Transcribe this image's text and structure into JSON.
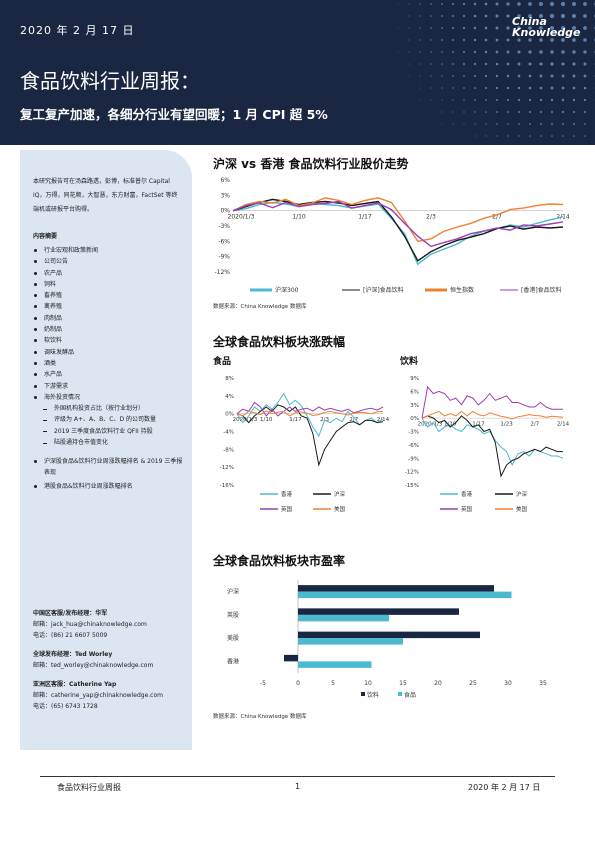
{
  "header": {
    "date": "2020 年 2 月 17 日",
    "logo_line1": "China",
    "logo_line2": "Knowledge",
    "title": "食品饮料行业周报：",
    "subtitle": "复工复产加速，各细分行业有望回暖；1 月 CPI 超 5%"
  },
  "colors": {
    "banner": "#1a2742",
    "sidebar": "#dce6f1",
    "teal": "#4bb9d0",
    "black": "#1a1a1a",
    "orange": "#f08030",
    "purple": "#9b3fb5",
    "navy": "#1a2742"
  },
  "sidebar": {
    "intro": "本研究报告可在汤森路透，彭博，标准普尔 Capital IQ，万得，同花顺，大智慧，东方财富，FactSet 等终端机或研报平台购得。",
    "toc_heading": "内容摘要",
    "toc": [
      {
        "kind": "b",
        "text": "行业宏观和政策新闻"
      },
      {
        "kind": "b",
        "text": "公司公告"
      },
      {
        "kind": "b",
        "text": "农产品"
      },
      {
        "kind": "b",
        "text": "饲料"
      },
      {
        "kind": "b",
        "text": "畜养殖"
      },
      {
        "kind": "b",
        "text": "禽养殖"
      },
      {
        "kind": "b",
        "text": "肉制品"
      },
      {
        "kind": "b",
        "text": "奶制品"
      },
      {
        "kind": "b",
        "text": "软饮料"
      },
      {
        "kind": "b",
        "text": "调味发酵品"
      },
      {
        "kind": "b",
        "text": "酒类"
      },
      {
        "kind": "b",
        "text": "水产品"
      },
      {
        "kind": "b",
        "text": "下游需求"
      },
      {
        "kind": "b",
        "text": "海外投资情况"
      },
      {
        "kind": "s",
        "text": "外国机构投资占比（按行业划分）"
      },
      {
        "kind": "s",
        "text": "评级为 A+、A、B、C、D 的公司数量"
      },
      {
        "kind": "s",
        "text": "2019 三季度食品饮料行业 QFII 持股"
      },
      {
        "kind": "s",
        "text": "陆股通持仓市值变化"
      },
      {
        "kind": "gap",
        "text": ""
      },
      {
        "kind": "bw",
        "text": "沪深股食品&饮料行业周涨跌幅排名 & 2019 三季报表现"
      },
      {
        "kind": "b",
        "text": "港股食品&饮料行业周涨跌幅排名"
      }
    ],
    "contacts": [
      {
        "heading": "中国区客服/发布经理：华军",
        "lines": [
          "邮箱：jack_hua@chinaknowledge.com",
          "电话：(86) 21 6607 5009"
        ]
      },
      {
        "heading": "全球发布经理：Ted Worley",
        "lines": [
          "邮箱：ted_worley@chinaknowledge.com"
        ]
      },
      {
        "heading": "亚洲区客服：Catherine Yap",
        "lines": [
          "邮箱：catherine_yap@chinaknowledge.com",
          "电话：(65) 6743 1728"
        ]
      }
    ]
  },
  "section1": {
    "title": "沪深 vs 香港 食品饮料行业股价走势",
    "source": "数据来源：China Knowledge 数据库"
  },
  "section2": {
    "title": "全球食品饮料板块涨跌幅",
    "left_label": "食品",
    "right_label": "饮料"
  },
  "section3": {
    "title": "全球食品饮料板块市盈率",
    "source": "数据来源：China Knowledge 数据库"
  },
  "footer": {
    "left": "食品饮料行业周报",
    "page": "1",
    "right": "2020 年 2 月 17 日"
  },
  "chart_data": [
    {
      "type": "line",
      "title": "沪深 vs 香港 食品饮料行业股价走势",
      "x_ticks": [
        "2020/1/3",
        "1/10",
        "1/17",
        "2/3",
        "2/7",
        "2/14"
      ],
      "ylim": [
        -12,
        6
      ],
      "y_ticks": [
        "6%",
        "3%",
        "0%",
        "-3%",
        "-6%",
        "-9%",
        "-12%"
      ],
      "series": [
        {
          "name": "沪深300",
          "color": "#4bb9d0",
          "values": [
            0,
            0.4,
            1.2,
            1.6,
            1.3,
            0.8,
            1.5,
            1.2,
            1.0,
            0.5,
            0.9,
            1.3,
            -1.5,
            -4.5,
            -10.5,
            -8.5,
            -7.5,
            -6.5,
            -5.0,
            -4.0,
            -3.5,
            -2.8,
            -3.2,
            -2.5,
            -1.8,
            -1.2
          ]
        },
        {
          "name": "[沪深]食品饮料",
          "color": "#1a1a1a",
          "values": [
            0,
            0.8,
            1.6,
            2.2,
            1.8,
            1.2,
            1.6,
            1.8,
            1.5,
            1.0,
            1.4,
            1.8,
            -1.2,
            -5.0,
            -9.8,
            -8.0,
            -6.8,
            -5.8,
            -5.2,
            -4.5,
            -3.5,
            -3.0,
            -3.6,
            -3.2,
            -3.4,
            -3.2
          ]
        },
        {
          "name": "恒生指数",
          "color": "#f08030",
          "values": [
            0,
            1.2,
            1.8,
            1.5,
            2.2,
            1.0,
            1.5,
            2.5,
            2.0,
            1.2,
            2.0,
            2.5,
            1.6,
            -2.0,
            -6.0,
            -5.5,
            -4.0,
            -3.2,
            -2.5,
            -1.5,
            -0.8,
            0.2,
            0.5,
            1.0,
            1.3,
            1.2
          ]
        },
        {
          "name": "[香港]食品饮料",
          "color": "#9b3fb5",
          "values": [
            0,
            1.0,
            1.5,
            0.6,
            1.6,
            0.8,
            1.2,
            1.4,
            1.8,
            0.5,
            1.0,
            1.5,
            0.2,
            -2.5,
            -5.0,
            -7.0,
            -6.2,
            -5.5,
            -4.5,
            -4.0,
            -3.4,
            -3.8,
            -2.8,
            -3.0,
            -2.6,
            -2.2
          ]
        }
      ]
    },
    {
      "type": "line",
      "title": "食品",
      "x_ticks": [
        "2020/1/3",
        "1/10",
        "1/17",
        "2/3",
        "2/7",
        "2/14"
      ],
      "ylim": [
        -16,
        8
      ],
      "y_ticks": [
        "8%",
        "4%",
        "0%",
        "-4%",
        "-8%",
        "-12%",
        "-16%"
      ],
      "series": [
        {
          "name": "香港",
          "color": "#4bb9d0",
          "values": [
            0,
            -2.0,
            -0.5,
            1.5,
            0.5,
            2.0,
            1.0,
            2.5,
            4.5,
            2.0,
            3.0,
            1.8,
            -0.5,
            -3.0,
            -5.0,
            -1.5,
            -2.0,
            -1.0,
            -1.8,
            0.5,
            -0.8,
            -2.5,
            -1.5,
            -1.0,
            -2.0,
            -1.2
          ]
        },
        {
          "name": "沪深",
          "color": "#1a1a1a",
          "values": [
            0,
            -0.5,
            -2.0,
            -0.5,
            0.5,
            1.5,
            0.5,
            2.0,
            1.5,
            0.5,
            1.5,
            -0.5,
            -1.0,
            -4.5,
            -11.5,
            -8.0,
            -6.0,
            -4.0,
            -3.0,
            -2.0,
            -1.8,
            -2.5,
            -1.5,
            -1.5,
            -2.0,
            -1.8
          ]
        },
        {
          "name": "英国",
          "color": "#9b3fb5",
          "values": [
            0,
            1.0,
            0.5,
            2.5,
            1.5,
            -0.5,
            1.0,
            -0.5,
            0.5,
            1.5,
            0.5,
            1.0,
            1.2,
            0.6,
            1.5,
            0.8,
            1.2,
            0.8,
            0.5,
            1.0,
            0.2,
            0.6,
            1.0,
            1.2,
            0.8,
            1.5
          ]
        },
        {
          "name": "美国",
          "color": "#f08030",
          "values": [
            0,
            -0.5,
            0.5,
            0.2,
            -0.2,
            0.6,
            0.0,
            0.3,
            0.5,
            -0.5,
            0.2,
            0.4,
            0.1,
            -0.4,
            -0.2,
            0.3,
            0.5,
            0.2,
            0.0,
            -0.3,
            0.1,
            0.3,
            0.2,
            0.0,
            0.4,
            0.5
          ]
        }
      ]
    },
    {
      "type": "line",
      "title": "饮料",
      "x_ticks": [
        "2020/1/3",
        "1/10",
        "1/17",
        "1/23",
        "2/7",
        "2/14"
      ],
      "ylim": [
        -15,
        9
      ],
      "y_ticks": [
        "9%",
        "6%",
        "3%",
        "0%",
        "-3%",
        "-6%",
        "-9%",
        "-12%",
        "-15%"
      ],
      "series": [
        {
          "name": "香港",
          "color": "#4bb9d0",
          "values": [
            0,
            -2.0,
            -1.0,
            -3.0,
            -2.0,
            -1.5,
            -2.5,
            -3.0,
            -1.5,
            -2.0,
            -2.5,
            -3.5,
            -3.0,
            -5.0,
            -6.5,
            -7.5,
            -10.5,
            -8.0,
            -7.5,
            -8.5,
            -7.0,
            -7.5,
            -8.0,
            -8.5,
            -8.5,
            -9.0
          ]
        },
        {
          "name": "沪深",
          "color": "#1a1a1a",
          "values": [
            0,
            0.5,
            0.0,
            -1.0,
            -0.5,
            -2.0,
            -1.0,
            0.5,
            -0.5,
            -2.0,
            -1.5,
            -3.0,
            -2.5,
            -5.5,
            -13.0,
            -10.5,
            -9.5,
            -9.0,
            -8.0,
            -7.5,
            -7.0,
            -7.5,
            -6.5,
            -7.0,
            -7.5,
            -7.5
          ]
        },
        {
          "name": "英国",
          "color": "#9b3fb5",
          "values": [
            0,
            7.0,
            5.5,
            6.0,
            5.5,
            4.0,
            4.5,
            3.0,
            5.0,
            4.5,
            3.0,
            4.0,
            5.5,
            4.0,
            4.5,
            5.0,
            3.5,
            3.5,
            3.0,
            2.5,
            2.5,
            3.5,
            2.5,
            2.0,
            2.0,
            2.0
          ]
        },
        {
          "name": "美国",
          "color": "#f08030",
          "values": [
            0,
            0.5,
            1.0,
            1.5,
            0.5,
            1.0,
            0.5,
            1.5,
            0.5,
            1.5,
            0.8,
            0.5,
            1.2,
            0.8,
            0.4,
            0.2,
            -0.2,
            0.3,
            0.5,
            0.8,
            0.6,
            0.5,
            0.2,
            0.4,
            0.3,
            0.2
          ]
        }
      ]
    },
    {
      "type": "bar",
      "title": "全球食品饮料板块市盈率",
      "orientation": "horizontal",
      "categories": [
        "沪深",
        "英股",
        "美股",
        "香港"
      ],
      "xlim": [
        -5,
        35
      ],
      "x_ticks": [
        "-5",
        "0",
        "5",
        "10",
        "15",
        "20",
        "25",
        "30",
        "35"
      ],
      "series": [
        {
          "name": "饮料",
          "color": "#1a2742",
          "values": [
            28.0,
            23.0,
            26.0,
            -2.0
          ]
        },
        {
          "name": "食品",
          "color": "#4bb9d0",
          "values": [
            30.5,
            13.0,
            15.0,
            10.5
          ]
        }
      ]
    }
  ]
}
